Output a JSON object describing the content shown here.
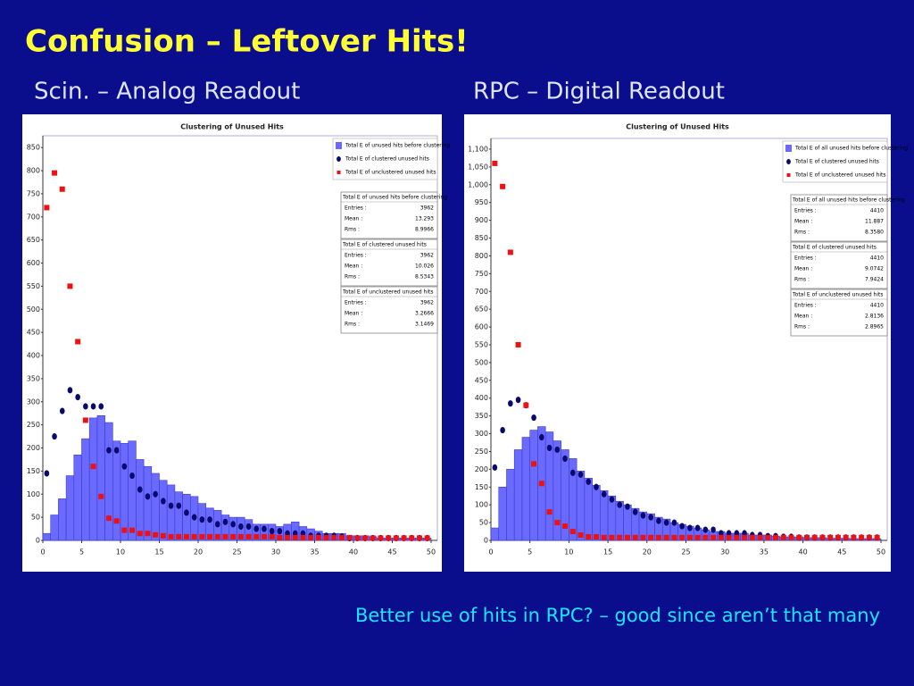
{
  "title": "Confusion – Leftover Hits!",
  "note": "Better use of hits in RPC? – good since aren’t that many",
  "chart_data": [
    {
      "type": "histogram",
      "panel_title": "Scin. – Analog Readout",
      "title": "Clustering of Unused Hits",
      "bins": [
        0,
        1,
        2,
        3,
        4,
        5,
        6,
        7,
        8,
        9,
        10,
        11,
        12,
        13,
        14,
        15,
        16,
        17,
        18,
        19,
        20,
        21,
        22,
        23,
        24,
        25,
        26,
        27,
        28,
        29,
        30,
        31,
        32,
        33,
        34,
        35,
        36,
        37,
        38,
        39,
        40,
        41,
        42,
        43,
        44,
        45,
        46,
        47,
        48,
        49,
        50
      ],
      "xlim": [
        0,
        50
      ],
      "xticks": [
        0,
        5,
        10,
        15,
        20,
        25,
        30,
        35,
        40,
        45,
        50
      ],
      "ylim": [
        0,
        860
      ],
      "yticks": [
        0,
        50,
        100,
        150,
        200,
        250,
        300,
        350,
        400,
        450,
        500,
        550,
        600,
        650,
        700,
        750,
        800,
        850
      ],
      "series": [
        {
          "name": "Total E of unused hits before clustering",
          "style": "bar",
          "color": "#6a6aff",
          "values": [
            15,
            55,
            90,
            140,
            185,
            220,
            265,
            270,
            255,
            215,
            210,
            215,
            175,
            160,
            145,
            130,
            120,
            105,
            100,
            95,
            80,
            70,
            65,
            55,
            50,
            50,
            45,
            35,
            35,
            35,
            30,
            35,
            40,
            30,
            25,
            20,
            15,
            15,
            15,
            10,
            10,
            10,
            8,
            5,
            5,
            5,
            5,
            5,
            5,
            5
          ],
          "stats": [
            {
              "label": "Entries :",
              "value": 3962
            },
            {
              "label": "Mean :",
              "value": 13.293
            },
            {
              "label": "Rms :",
              "value": 8.9966
            }
          ]
        },
        {
          "name": "Total E of clustered unused hits",
          "style": "dot",
          "color": "#0a0a6e",
          "values": [
            145,
            225,
            280,
            325,
            310,
            290,
            290,
            290,
            195,
            195,
            160,
            140,
            110,
            95,
            100,
            85,
            75,
            75,
            60,
            50,
            45,
            45,
            35,
            40,
            35,
            30,
            30,
            25,
            25,
            20,
            20,
            15,
            15,
            15,
            10,
            10,
            10,
            10,
            8,
            5,
            5,
            5,
            5,
            5,
            5,
            5,
            5,
            5,
            5,
            5
          ],
          "stats": [
            {
              "label": "Entries :",
              "value": 3962
            },
            {
              "label": "Mean :",
              "value": 10.026
            },
            {
              "label": "Rms :",
              "value": 8.5343
            }
          ]
        },
        {
          "name": "Total E of unclustered unused hits",
          "style": "square",
          "color": "#ee1111",
          "values": [
            720,
            795,
            760,
            550,
            430,
            260,
            160,
            95,
            48,
            42,
            22,
            22,
            15,
            15,
            12,
            10,
            8,
            8,
            8,
            8,
            8,
            8,
            8,
            8,
            8,
            8,
            8,
            8,
            8,
            8,
            6,
            6,
            6,
            6,
            6,
            6,
            6,
            6,
            6,
            6,
            5,
            5,
            5,
            5,
            5,
            5,
            5,
            5,
            5,
            5
          ],
          "stats": [
            {
              "label": "Entries :",
              "value": 3962
            },
            {
              "label": "Mean :",
              "value": 3.2666
            },
            {
              "label": "Rms :",
              "value": 3.1469
            }
          ]
        }
      ]
    },
    {
      "type": "histogram",
      "panel_title": "RPC – Digital Readout",
      "title": "Clustering of Unused Hits",
      "bins": [
        0,
        1,
        2,
        3,
        4,
        5,
        6,
        7,
        8,
        9,
        10,
        11,
        12,
        13,
        14,
        15,
        16,
        17,
        18,
        19,
        20,
        21,
        22,
        23,
        24,
        25,
        26,
        27,
        28,
        29,
        30,
        31,
        32,
        33,
        34,
        35,
        36,
        37,
        38,
        39,
        40,
        41,
        42,
        43,
        44,
        45,
        46,
        47,
        48,
        49,
        50
      ],
      "xlim": [
        0,
        50
      ],
      "xticks": [
        0,
        5,
        10,
        15,
        20,
        25,
        30,
        35,
        40,
        45,
        50
      ],
      "ylim": [
        0,
        1110
      ],
      "yticks": [
        0,
        50,
        100,
        150,
        200,
        250,
        300,
        350,
        400,
        450,
        500,
        550,
        600,
        650,
        700,
        750,
        800,
        850,
        900,
        950,
        {
          "value": 1000,
          "label": "1,000"
        },
        {
          "value": 1050,
          "label": "1,050"
        },
        {
          "value": 1100,
          "label": "1,100"
        }
      ],
      "series": [
        {
          "name": "Total E of all unused hits before clustering",
          "style": "bar",
          "color": "#6a6aff",
          "values": [
            35,
            150,
            200,
            255,
            290,
            310,
            320,
            305,
            280,
            255,
            230,
            195,
            175,
            155,
            140,
            125,
            110,
            100,
            90,
            80,
            75,
            65,
            60,
            50,
            45,
            40,
            35,
            30,
            25,
            25,
            20,
            20,
            20,
            15,
            15,
            15,
            12,
            10,
            10,
            10,
            8,
            8,
            8,
            6,
            6,
            6,
            5,
            5,
            5,
            5
          ],
          "stats": [
            {
              "label": "Entries :",
              "value": 4410
            },
            {
              "label": "Mean :",
              "value": 11.887
            },
            {
              "label": "Rms :",
              "value": 8.358,
              "value_label": "8.3580"
            }
          ]
        },
        {
          "name": "Total E of clustered unused hits",
          "style": "dot",
          "color": "#0a0a6e",
          "values": [
            205,
            310,
            385,
            395,
            380,
            345,
            290,
            260,
            255,
            230,
            190,
            185,
            165,
            150,
            130,
            115,
            100,
            95,
            80,
            70,
            65,
            55,
            50,
            50,
            40,
            35,
            35,
            30,
            30,
            20,
            20,
            20,
            20,
            15,
            15,
            12,
            12,
            10,
            10,
            8,
            8,
            8,
            8,
            8,
            8,
            8,
            8,
            8,
            8,
            8
          ],
          "stats": [
            {
              "label": "Entries :",
              "value": 4410
            },
            {
              "label": "Mean :",
              "value": 9.0742
            },
            {
              "label": "Rms :",
              "value": 7.9424
            }
          ]
        },
        {
          "name": "Total E of unclustered unused hits",
          "style": "square",
          "color": "#ee1111",
          "values": [
            1060,
            995,
            810,
            550,
            380,
            215,
            160,
            80,
            50,
            40,
            25,
            15,
            10,
            10,
            8,
            8,
            8,
            8,
            8,
            8,
            8,
            8,
            8,
            8,
            8,
            8,
            8,
            8,
            8,
            8,
            8,
            8,
            8,
            8,
            8,
            8,
            8,
            8,
            8,
            8,
            8,
            8,
            8,
            8,
            8,
            8,
            8,
            8,
            8,
            8
          ],
          "stats": [
            {
              "label": "Entries :",
              "value": 4410
            },
            {
              "label": "Mean :",
              "value": 2.8136
            },
            {
              "label": "Rms :",
              "value": 2.8965
            }
          ]
        }
      ]
    }
  ]
}
